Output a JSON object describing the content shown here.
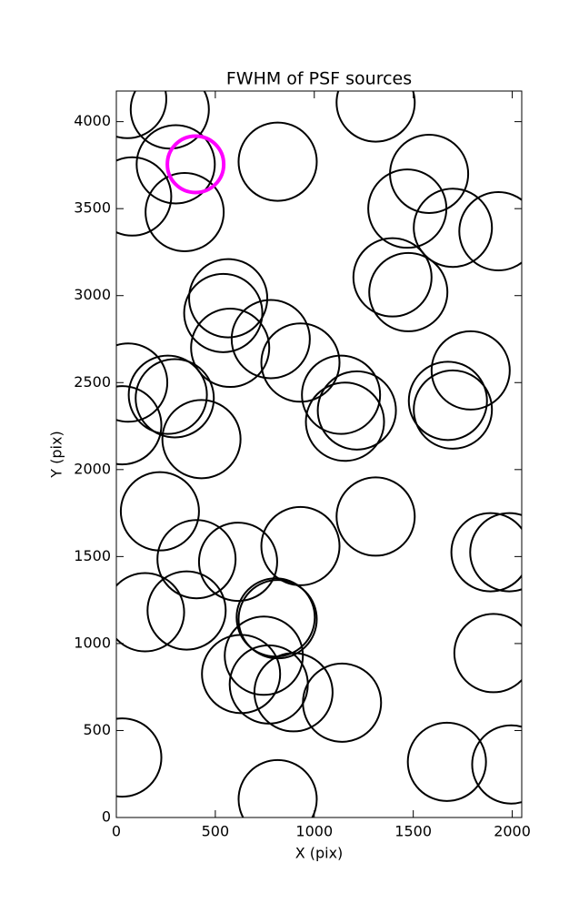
{
  "chart_data": {
    "type": "scatter",
    "title": "FWHM of PSF sources",
    "x_label": "X (pix)",
    "y_label": "Y (pix)",
    "xlim": [
      0,
      2048
    ],
    "ylim": [
      0,
      4176
    ],
    "xticks": [
      0,
      500,
      1000,
      1500,
      2000
    ],
    "yticks": [
      0,
      500,
      1000,
      1500,
      2000,
      2500,
      3000,
      3500,
      4000
    ],
    "series": [
      {
        "color": "#000000",
        "x": [
          55,
          270,
          1310,
          300,
          80,
          345,
          815,
          1580,
          1470,
          1700,
          1930,
          1395,
          1475,
          565,
          540,
          575,
          780,
          930,
          60,
          260,
          295,
          1135,
          1215,
          1155,
          1675,
          1700,
          1790,
          30,
          430,
          220,
          1310,
          405,
          615,
          930,
          1890,
          1985,
          145,
          355,
          805,
          815,
          1905,
          630,
          745,
          770,
          895,
          1140,
          30,
          1670,
          1995,
          815
        ],
        "y": [
          4130,
          4070,
          4110,
          3755,
          3570,
          3480,
          3770,
          3700,
          3500,
          3390,
          3370,
          3105,
          3020,
          2985,
          2900,
          2700,
          2750,
          2615,
          2500,
          2430,
          2410,
          2430,
          2340,
          2275,
          2395,
          2345,
          2570,
          2255,
          2175,
          1760,
          1730,
          1485,
          1470,
          1560,
          1525,
          1525,
          1180,
          1190,
          1150,
          1140,
          945,
          825,
          930,
          765,
          720,
          660,
          345,
          320,
          305,
          105
        ]
      },
      {
        "color": "#ff00ff",
        "x": [
          400
        ],
        "y": [
          3755
        ]
      }
    ]
  }
}
